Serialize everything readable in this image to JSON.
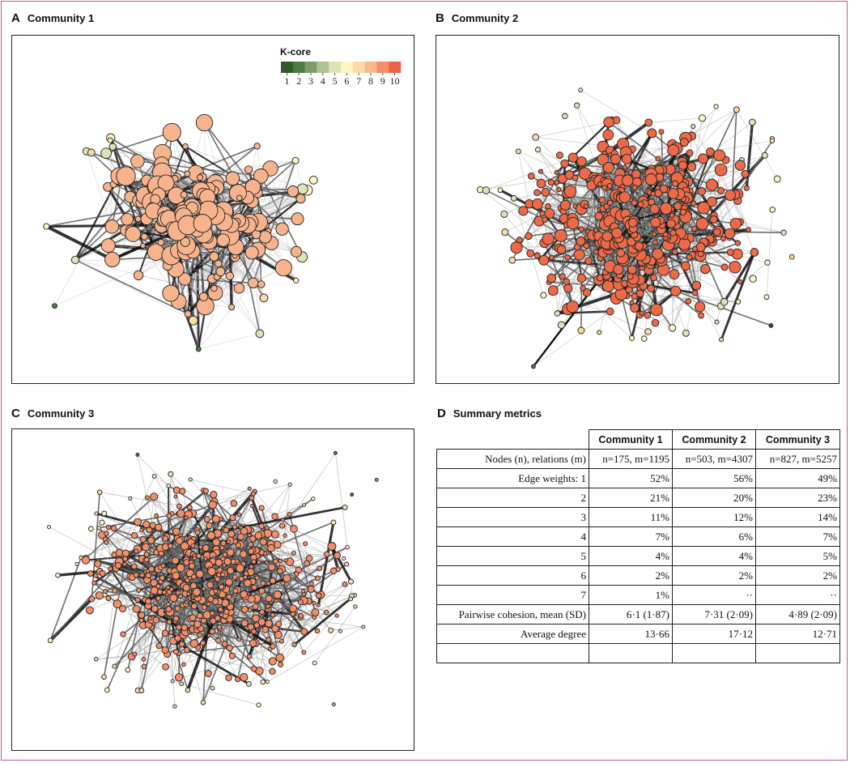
{
  "panels": {
    "a": {
      "letter": "A",
      "title": "Community 1"
    },
    "b": {
      "letter": "B",
      "title": "Community 2"
    },
    "c": {
      "letter": "C",
      "title": "Community 3"
    },
    "d": {
      "letter": "D",
      "title": "Summary metrics"
    }
  },
  "legend": {
    "title": "K-core",
    "ticks": [
      "1",
      "2",
      "3",
      "4",
      "5",
      "6",
      "7",
      "8",
      "9",
      "10"
    ],
    "colors": [
      "#2e5b2a",
      "#4e7a44",
      "#7f9b6a",
      "#b0c394",
      "#dde3b6",
      "#fff5c2",
      "#fdd9a8",
      "#f9b98b",
      "#f58f6b",
      "#ec6446"
    ]
  },
  "networks": {
    "community1": {
      "node_color": "#f7b48c",
      "edge_color": "#b9b9b9"
    },
    "community2": {
      "node_color": "#ec6a48",
      "edge_color": "#9a9a9a"
    },
    "community3": {
      "node_color": "#f28e68",
      "edge_color": "#8a8a8a"
    }
  },
  "table": {
    "columns": [
      "Community 1",
      "Community 2",
      "Community 3"
    ],
    "rows": [
      {
        "label": "Nodes (n), relations (m)",
        "values": [
          "n=175, m=1195",
          "n=503, m=4307",
          "n=827, m=5257"
        ]
      },
      {
        "label": "Edge weights: 1",
        "values": [
          "52%",
          "56%",
          "49%"
        ]
      },
      {
        "label": "2",
        "values": [
          "21%",
          "20%",
          "23%"
        ]
      },
      {
        "label": "3",
        "values": [
          "11%",
          "12%",
          "14%"
        ]
      },
      {
        "label": "4",
        "values": [
          "7%",
          "6%",
          "7%"
        ]
      },
      {
        "label": "5",
        "values": [
          "4%",
          "4%",
          "5%"
        ]
      },
      {
        "label": "6",
        "values": [
          "2%",
          "2%",
          "2%"
        ]
      },
      {
        "label": "7",
        "values": [
          "1%",
          "··",
          "··"
        ]
      },
      {
        "label": "Pairwise cohesion, mean (SD)",
        "values": [
          "6·1 (1·87)",
          "7·31 (2·09)",
          "4·89 (2·09)"
        ]
      },
      {
        "label": "Average degree",
        "values": [
          "13·66",
          "17·12",
          "12·71"
        ]
      },
      {
        "label": "",
        "values": [
          "",
          "",
          ""
        ]
      }
    ]
  }
}
